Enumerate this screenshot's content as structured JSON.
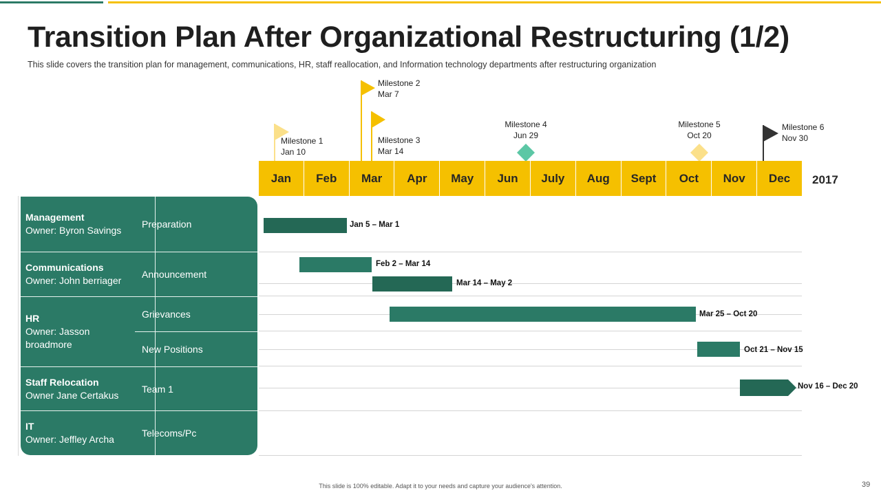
{
  "slide": {
    "title": "Transition Plan After Organizational Restructuring (1/2)",
    "subtitle": "This slide covers the transition plan for management, communications, HR, staff reallocation, and Information technology departments after restructuring organization",
    "footer": "This slide is 100% editable. Adapt it to your needs and capture your audience's attention.",
    "page_number": "39"
  },
  "colors": {
    "accent_yellow": "#f5c000",
    "accent_teal": "#2b7a66",
    "dark_teal": "#246855",
    "milestone_light_yellow": "#fbe08a",
    "milestone_turquoise": "#5cc7a5",
    "milestone_black": "#333333"
  },
  "timeline": {
    "year": "2017",
    "months": [
      "Jan",
      "Feb",
      "Mar",
      "Apr",
      "May",
      "Jun",
      "July",
      "Aug",
      "Sept",
      "Oct",
      "Nov",
      "Dec"
    ]
  },
  "milestones": [
    {
      "name": "Milestone 1",
      "date": "Jan 10",
      "icon": "flag-icon",
      "color": "#fbe08a"
    },
    {
      "name": "Milestone 2",
      "date": "Mar 7",
      "icon": "flag-icon",
      "color": "#f5c000"
    },
    {
      "name": "Milestone 3",
      "date": "Mar 14",
      "icon": "flag-icon",
      "color": "#f5c000"
    },
    {
      "name": "Milestone 4",
      "date": "Jun 29",
      "icon": "diamond-icon",
      "color": "#5cc7a5"
    },
    {
      "name": "Milestone 5",
      "date": "Oct 20",
      "icon": "diamond-icon",
      "color": "#fbe08a"
    },
    {
      "name": "Milestone 6",
      "date": "Nov 30",
      "icon": "flag-icon",
      "color": "#333333"
    }
  ],
  "departments": [
    {
      "name": "Management",
      "owner": "Owner: Byron Savings"
    },
    {
      "name": "Communications",
      "owner": "Owner: John berriager"
    },
    {
      "name": "HR",
      "owner": "Owner: Jasson broadmore"
    },
    {
      "name": "Staff Relocation",
      "owner": "Owner Jane Certakus"
    },
    {
      "name": "IT",
      "owner": "Owner: Jeffley Archa"
    }
  ],
  "tasks": [
    {
      "name": "Preparation",
      "department": "Management"
    },
    {
      "name": "Announcement",
      "department": "Communications"
    },
    {
      "name": "Grievances",
      "department": "HR"
    },
    {
      "name": "New Positions",
      "department": "HR"
    },
    {
      "name": "Team 1",
      "department": "Staff Relocation"
    },
    {
      "name": "Telecoms/Pc",
      "department": "IT"
    }
  ],
  "bars": [
    {
      "label": "Jan 5 – Mar 1",
      "task": "Preparation"
    },
    {
      "label": "Feb 2 – Mar 14",
      "task": "Announcement"
    },
    {
      "label": "Mar 14 – May 2",
      "task": "Announcement"
    },
    {
      "label": "Mar 25 – Oct 20",
      "task": "Grievances"
    },
    {
      "label": "Oct 21 – Nov 15",
      "task": "New Positions"
    },
    {
      "label": "Nov 16 – Dec 20",
      "task": "Team 1"
    }
  ]
}
